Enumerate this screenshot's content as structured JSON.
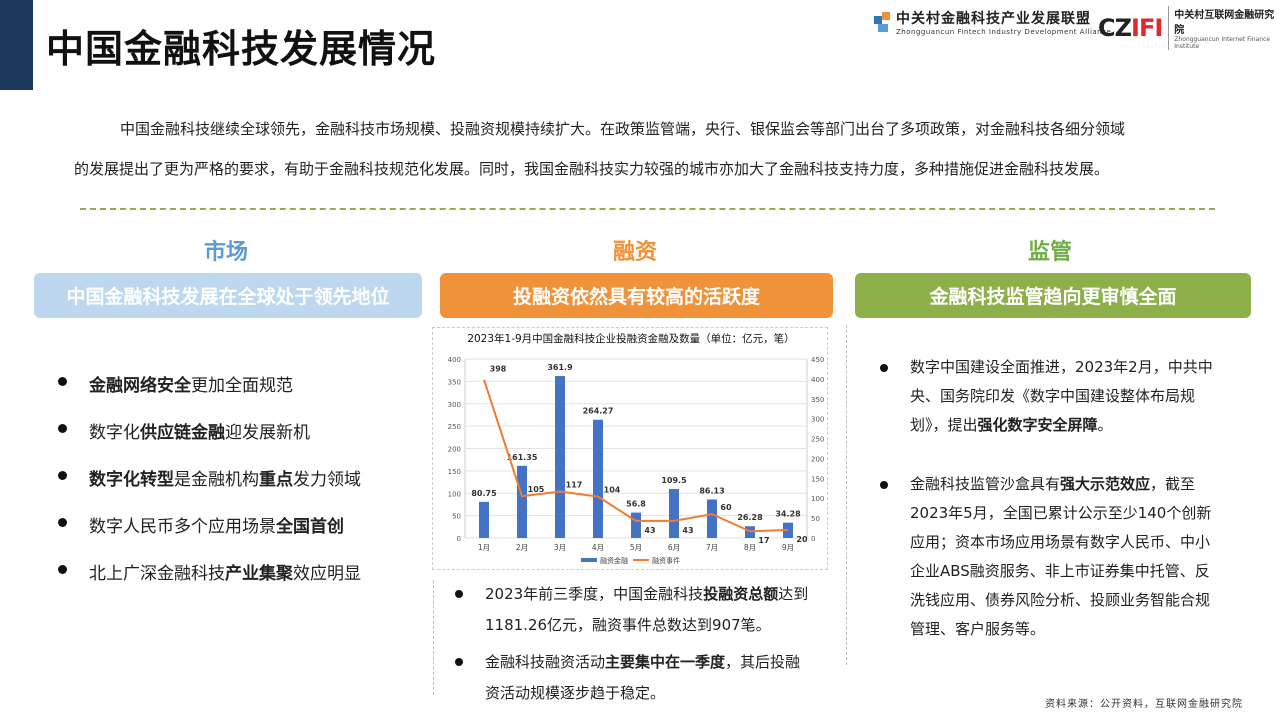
{
  "header": {
    "title": "中国金融科技发展情况",
    "logo1_cn": "中关村金融科技产业发展联盟",
    "logo1_en": "Zhongguancun Fintech Industry Development Alliance",
    "logo2_mark": "CZIFI",
    "logo2_cn": "中关村互联网金融研究院",
    "logo2_en": "Zhongguancun Internet Finance Institute"
  },
  "intro": [
    "中国金融科技继续全球领先，金融科技市场规模、投融资规模持续扩大。在政策监管端，央行、银保监会等部门出台了多项政策，对金融科技各细分领域",
    "的发展提出了更为严格的要求，有助于金融科技规范化发展。同时，我国金融科技实力较强的城市亦加大了金融科技支持力度，多种措施促进金融科技发展。"
  ],
  "sections": [
    {
      "heading": "市场",
      "box": "中国金融科技发展在全球处于领先地位",
      "color": "#5b9bd5",
      "box_color": "#bdd7ee",
      "bullets": [
        [
          [
            "金融网络安全",
            true
          ],
          [
            "更加全面规范",
            false
          ]
        ],
        [
          [
            "数字化",
            false
          ],
          [
            "供应链金融",
            true
          ],
          [
            "迎发展新机",
            false
          ]
        ],
        [
          [
            "数字化转型",
            true
          ],
          [
            "是金融机构",
            false
          ],
          [
            "重点",
            true
          ],
          [
            "发力领域",
            false
          ]
        ],
        [
          [
            "数字人民币多个应用场景",
            false
          ],
          [
            "全国首创",
            true
          ]
        ],
        [
          [
            "北上广深金融科技",
            false
          ],
          [
            "产业集聚",
            true
          ],
          [
            "效应明显",
            false
          ]
        ]
      ]
    },
    {
      "heading": "融资",
      "box": "投融资依然具有较高的活跃度",
      "color": "#f0923a",
      "box_color": "#f0923a",
      "bullets": [
        [
          [
            "2023年前三季度，中国金融科技",
            false
          ],
          [
            "投融资总额",
            true
          ],
          [
            "达到1181.26亿元，融资事件总数达到907笔。",
            false
          ]
        ],
        [
          [
            "金融科技融资活动",
            false
          ],
          [
            "主要集中在一季度",
            true
          ],
          [
            "，其后投融资活动规模逐步趋于稳定。",
            false
          ]
        ]
      ]
    },
    {
      "heading": "监管",
      "box": "金融科技监管趋向更审慎全面",
      "color": "#70ad47",
      "box_color": "#8db04b",
      "bullets": [
        [
          [
            "数字中国建设全面推进，2023年2月，中共中央、国务院印发《数字中国建设整体布局规划》，提出",
            false
          ],
          [
            "强化数字安全屏障",
            true
          ],
          [
            "。",
            false
          ]
        ],
        [
          [
            "金融科技监管沙盒具有",
            false
          ],
          [
            "强大示范效应",
            true
          ],
          [
            "，截至2023年5月，全国已累计公示至少140个创新应用；资本市场应用场景有数字人民币、中小企业ABS融资服务、非上市证券集中托管、反洗钱应用、债券风险分析、投顾业务智能合规管理、客户服务等。",
            false
          ]
        ]
      ]
    }
  ],
  "chart_data": {
    "type": "bar+line",
    "title": "2023年1-9月中国金融科技企业投融资金融及数量（单位：亿元，笔）",
    "categories": [
      "1月",
      "2月",
      "3月",
      "4月",
      "5月",
      "6月",
      "7月",
      "8月",
      "9月"
    ],
    "series": [
      {
        "name": "融资金融",
        "type": "bar",
        "axis": "left",
        "color": "#4472c4",
        "values": [
          80.75,
          161.35,
          361.9,
          264.27,
          56.8,
          109.5,
          86.13,
          26.28,
          34.28
        ]
      },
      {
        "name": "融资事件",
        "type": "line",
        "axis": "right",
        "color": "#ed7d31",
        "values": [
          398,
          105,
          117,
          104,
          43,
          43,
          60,
          17,
          20
        ]
      }
    ],
    "ylim_left": [
      0,
      400
    ],
    "yticks_left": [
      0,
      50,
      100,
      150,
      200,
      250,
      300,
      350,
      400
    ],
    "ylim_right": [
      0,
      450
    ],
    "yticks_right": [
      0,
      50,
      100,
      150,
      200,
      250,
      300,
      350,
      400,
      450
    ],
    "grid": true,
    "legend": "bottom"
  },
  "source": "资料来源：公开资料，互联网金融研究院"
}
